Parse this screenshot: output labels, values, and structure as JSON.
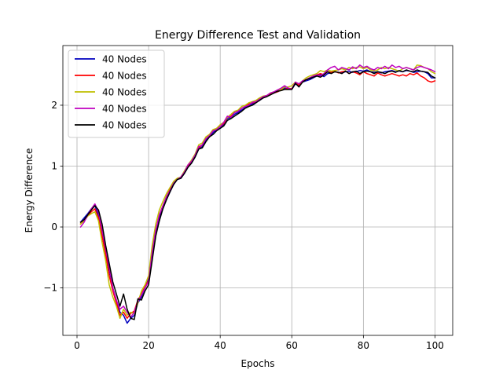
{
  "chart_data": {
    "type": "line",
    "title": "Energy Difference Test and Validation",
    "xlabel": "Epochs",
    "ylabel": "Energy Difference",
    "xlim": [
      -3.95,
      104.95
    ],
    "ylim": [
      -1.78,
      2.98
    ],
    "xticks": [
      0,
      20,
      40,
      60,
      80,
      100
    ],
    "yticks": [
      -1,
      0,
      1,
      2
    ],
    "grid": true,
    "legend_position": "upper-left",
    "series": [
      {
        "name": "40 Nodes",
        "color": "#0000bf",
        "x": [
          1,
          2,
          3,
          4,
          5,
          6,
          7,
          8,
          9,
          10,
          11,
          12,
          13,
          14,
          15,
          16,
          17,
          18,
          19,
          20,
          21,
          22,
          23,
          24,
          25,
          26,
          27,
          28,
          29,
          30,
          31,
          32,
          33,
          34,
          35,
          36,
          37,
          38,
          39,
          40,
          41,
          42,
          43,
          44,
          45,
          46,
          47,
          48,
          49,
          50,
          51,
          52,
          53,
          54,
          55,
          56,
          57,
          58,
          59,
          60,
          61,
          62,
          63,
          64,
          65,
          66,
          67,
          68,
          69,
          70,
          71,
          72,
          73,
          74,
          75,
          76,
          77,
          78,
          79,
          80,
          81,
          82,
          83,
          84,
          85,
          86,
          87,
          88,
          89,
          90,
          91,
          92,
          93,
          94,
          95,
          96,
          97,
          98,
          99,
          100
        ],
        "y": [
          0.08,
          0.15,
          0.22,
          0.3,
          0.35,
          0.2,
          -0.1,
          -0.4,
          -0.7,
          -1.0,
          -1.2,
          -1.4,
          -1.45,
          -1.58,
          -1.5,
          -1.45,
          -1.25,
          -1.15,
          -1.0,
          -0.85,
          -0.45,
          -0.1,
          0.15,
          0.3,
          0.45,
          0.58,
          0.7,
          0.78,
          0.8,
          0.88,
          0.98,
          1.05,
          1.15,
          1.28,
          1.32,
          1.42,
          1.48,
          1.55,
          1.6,
          1.62,
          1.68,
          1.78,
          1.8,
          1.85,
          1.88,
          1.92,
          1.96,
          2.0,
          2.02,
          2.05,
          2.08,
          2.12,
          2.15,
          2.18,
          2.2,
          2.22,
          2.25,
          2.28,
          2.27,
          2.26,
          2.35,
          2.32,
          2.38,
          2.4,
          2.42,
          2.45,
          2.48,
          2.5,
          2.47,
          2.52,
          2.53,
          2.55,
          2.54,
          2.53,
          2.55,
          2.56,
          2.54,
          2.55,
          2.57,
          2.56,
          2.58,
          2.55,
          2.54,
          2.55,
          2.53,
          2.55,
          2.56,
          2.57,
          2.55,
          2.56,
          2.55,
          2.57,
          2.56,
          2.54,
          2.55,
          2.56,
          2.55,
          2.52,
          2.45,
          2.45
        ]
      },
      {
        "name": "40 Nodes",
        "color": "#ff0000",
        "x": [
          1,
          2,
          3,
          4,
          5,
          6,
          7,
          8,
          9,
          10,
          11,
          12,
          13,
          14,
          15,
          16,
          17,
          18,
          19,
          20,
          21,
          22,
          23,
          24,
          25,
          26,
          27,
          28,
          29,
          30,
          31,
          32,
          33,
          34,
          35,
          36,
          37,
          38,
          39,
          40,
          41,
          42,
          43,
          44,
          45,
          46,
          47,
          48,
          49,
          50,
          51,
          52,
          53,
          54,
          55,
          56,
          57,
          58,
          59,
          60,
          61,
          62,
          63,
          64,
          65,
          66,
          67,
          68,
          69,
          70,
          71,
          72,
          73,
          74,
          75,
          76,
          77,
          78,
          79,
          80,
          81,
          82,
          83,
          84,
          85,
          86,
          87,
          88,
          89,
          90,
          91,
          92,
          93,
          94,
          95,
          96,
          97,
          98,
          99,
          100
        ],
        "y": [
          0.05,
          0.12,
          0.18,
          0.25,
          0.3,
          0.15,
          -0.15,
          -0.45,
          -0.8,
          -1.05,
          -1.25,
          -1.45,
          -1.4,
          -1.5,
          -1.42,
          -1.38,
          -1.2,
          -1.1,
          -0.98,
          -0.88,
          -0.4,
          -0.05,
          0.2,
          0.35,
          0.5,
          0.62,
          0.72,
          0.78,
          0.82,
          0.9,
          1.0,
          1.08,
          1.18,
          1.3,
          1.35,
          1.45,
          1.5,
          1.58,
          1.62,
          1.65,
          1.7,
          1.8,
          1.82,
          1.88,
          1.9,
          1.95,
          1.98,
          2.02,
          2.04,
          2.06,
          2.1,
          2.12,
          2.15,
          2.18,
          2.2,
          2.22,
          2.25,
          2.26,
          2.28,
          2.27,
          2.36,
          2.33,
          2.38,
          2.42,
          2.45,
          2.47,
          2.5,
          2.52,
          2.5,
          2.55,
          2.54,
          2.56,
          2.53,
          2.55,
          2.56,
          2.52,
          2.55,
          2.53,
          2.5,
          2.55,
          2.52,
          2.5,
          2.48,
          2.53,
          2.5,
          2.48,
          2.5,
          2.52,
          2.5,
          2.48,
          2.5,
          2.48,
          2.52,
          2.5,
          2.53,
          2.48,
          2.45,
          2.4,
          2.38,
          2.4
        ]
      },
      {
        "name": "40 Nodes",
        "color": "#bfbf00",
        "x": [
          1,
          2,
          3,
          4,
          5,
          6,
          7,
          8,
          9,
          10,
          11,
          12,
          13,
          14,
          15,
          16,
          17,
          18,
          19,
          20,
          21,
          22,
          23,
          24,
          25,
          26,
          27,
          28,
          29,
          30,
          31,
          32,
          33,
          34,
          35,
          36,
          37,
          38,
          39,
          40,
          41,
          42,
          43,
          44,
          45,
          46,
          47,
          48,
          49,
          50,
          51,
          52,
          53,
          54,
          55,
          56,
          57,
          58,
          59,
          60,
          61,
          62,
          63,
          64,
          65,
          66,
          67,
          68,
          69,
          70,
          71,
          72,
          73,
          74,
          75,
          76,
          77,
          78,
          79,
          80,
          81,
          82,
          83,
          84,
          85,
          86,
          87,
          88,
          89,
          90,
          91,
          92,
          93,
          94,
          95,
          96,
          97,
          98,
          99,
          100
        ],
        "y": [
          0.05,
          0.1,
          0.18,
          0.22,
          0.25,
          0.1,
          -0.25,
          -0.55,
          -0.95,
          -1.15,
          -1.3,
          -1.5,
          -1.35,
          -1.45,
          -1.4,
          -1.42,
          -1.25,
          -1.05,
          -0.95,
          -0.8,
          -0.3,
          0.05,
          0.28,
          0.42,
          0.55,
          0.65,
          0.75,
          0.8,
          0.82,
          0.92,
          1.02,
          1.1,
          1.2,
          1.35,
          1.38,
          1.48,
          1.52,
          1.6,
          1.62,
          1.68,
          1.72,
          1.8,
          1.85,
          1.9,
          1.92,
          1.98,
          2.0,
          2.04,
          2.06,
          2.08,
          2.12,
          2.15,
          2.16,
          2.2,
          2.22,
          2.24,
          2.26,
          2.3,
          2.3,
          2.32,
          2.38,
          2.35,
          2.4,
          2.45,
          2.48,
          2.5,
          2.52,
          2.57,
          2.55,
          2.58,
          2.56,
          2.57,
          2.58,
          2.6,
          2.58,
          2.62,
          2.6,
          2.62,
          2.63,
          2.6,
          2.62,
          2.58,
          2.56,
          2.58,
          2.62,
          2.6,
          2.62,
          2.6,
          2.58,
          2.56,
          2.6,
          2.62,
          2.6,
          2.58,
          2.66,
          2.65,
          2.62,
          2.6,
          2.55,
          2.52
        ]
      },
      {
        "name": "40 Nodes",
        "color": "#bf00bf",
        "x": [
          1,
          2,
          3,
          4,
          5,
          6,
          7,
          8,
          9,
          10,
          11,
          12,
          13,
          14,
          15,
          16,
          17,
          18,
          19,
          20,
          21,
          22,
          23,
          24,
          25,
          26,
          27,
          28,
          29,
          30,
          31,
          32,
          33,
          34,
          35,
          36,
          37,
          38,
          39,
          40,
          41,
          42,
          43,
          44,
          45,
          46,
          47,
          48,
          49,
          50,
          51,
          52,
          53,
          54,
          55,
          56,
          57,
          58,
          59,
          60,
          61,
          62,
          63,
          64,
          65,
          66,
          67,
          68,
          69,
          70,
          71,
          72,
          73,
          74,
          75,
          76,
          77,
          78,
          79,
          80,
          81,
          82,
          83,
          84,
          85,
          86,
          87,
          88,
          89,
          90,
          91,
          92,
          93,
          94,
          95,
          96,
          97,
          98,
          99,
          100
        ],
        "y": [
          0.0,
          0.08,
          0.2,
          0.3,
          0.38,
          0.25,
          -0.05,
          -0.35,
          -0.65,
          -1.0,
          -1.2,
          -1.35,
          -1.3,
          -1.4,
          -1.48,
          -1.4,
          -1.22,
          -1.12,
          -1.0,
          -0.9,
          -0.42,
          -0.05,
          0.2,
          0.35,
          0.5,
          0.6,
          0.72,
          0.78,
          0.82,
          0.9,
          1.02,
          1.08,
          1.18,
          1.32,
          1.35,
          1.45,
          1.5,
          1.58,
          1.6,
          1.65,
          1.72,
          1.82,
          1.8,
          1.88,
          1.9,
          1.95,
          1.98,
          2.0,
          2.05,
          2.06,
          2.1,
          2.14,
          2.16,
          2.2,
          2.22,
          2.25,
          2.28,
          2.32,
          2.28,
          2.26,
          2.38,
          2.35,
          2.4,
          2.42,
          2.45,
          2.48,
          2.5,
          2.48,
          2.52,
          2.58,
          2.62,
          2.64,
          2.58,
          2.62,
          2.6,
          2.58,
          2.63,
          2.6,
          2.66,
          2.62,
          2.64,
          2.6,
          2.58,
          2.62,
          2.6,
          2.64,
          2.6,
          2.66,
          2.62,
          2.64,
          2.6,
          2.62,
          2.6,
          2.58,
          2.62,
          2.64,
          2.62,
          2.6,
          2.58,
          2.55
        ]
      },
      {
        "name": "40 Nodes",
        "color": "#000000",
        "x": [
          1,
          2,
          3,
          4,
          5,
          6,
          7,
          8,
          9,
          10,
          11,
          12,
          13,
          14,
          15,
          16,
          17,
          18,
          19,
          20,
          21,
          22,
          23,
          24,
          25,
          26,
          27,
          28,
          29,
          30,
          31,
          32,
          33,
          34,
          35,
          36,
          37,
          38,
          39,
          40,
          41,
          42,
          43,
          44,
          45,
          46,
          47,
          48,
          49,
          50,
          51,
          52,
          53,
          54,
          55,
          56,
          57,
          58,
          59,
          60,
          61,
          62,
          63,
          64,
          65,
          66,
          67,
          68,
          69,
          70,
          71,
          72,
          73,
          74,
          75,
          76,
          77,
          78,
          79,
          80,
          81,
          82,
          83,
          84,
          85,
          86,
          87,
          88,
          89,
          90,
          91,
          92,
          93,
          94,
          95,
          96,
          97,
          98,
          99,
          100
        ],
        "y": [
          0.08,
          0.12,
          0.2,
          0.28,
          0.35,
          0.28,
          0.05,
          -0.3,
          -0.6,
          -0.9,
          -1.1,
          -1.3,
          -1.1,
          -1.35,
          -1.5,
          -1.52,
          -1.18,
          -1.2,
          -1.05,
          -0.95,
          -0.55,
          -0.15,
          0.1,
          0.3,
          0.45,
          0.58,
          0.7,
          0.78,
          0.8,
          0.88,
          0.98,
          1.05,
          1.15,
          1.28,
          1.3,
          1.4,
          1.48,
          1.52,
          1.58,
          1.62,
          1.66,
          1.75,
          1.78,
          1.82,
          1.86,
          1.9,
          1.95,
          1.98,
          2.0,
          2.04,
          2.08,
          2.12,
          2.14,
          2.17,
          2.2,
          2.23,
          2.24,
          2.26,
          2.26,
          2.26,
          2.36,
          2.3,
          2.38,
          2.42,
          2.44,
          2.46,
          2.48,
          2.46,
          2.5,
          2.55,
          2.52,
          2.55,
          2.54,
          2.52,
          2.56,
          2.52,
          2.55,
          2.56,
          2.52,
          2.55,
          2.56,
          2.55,
          2.52,
          2.55,
          2.54,
          2.52,
          2.55,
          2.56,
          2.54,
          2.57,
          2.55,
          2.58,
          2.56,
          2.55,
          2.58,
          2.56,
          2.55,
          2.54,
          2.48,
          2.45
        ]
      }
    ]
  }
}
